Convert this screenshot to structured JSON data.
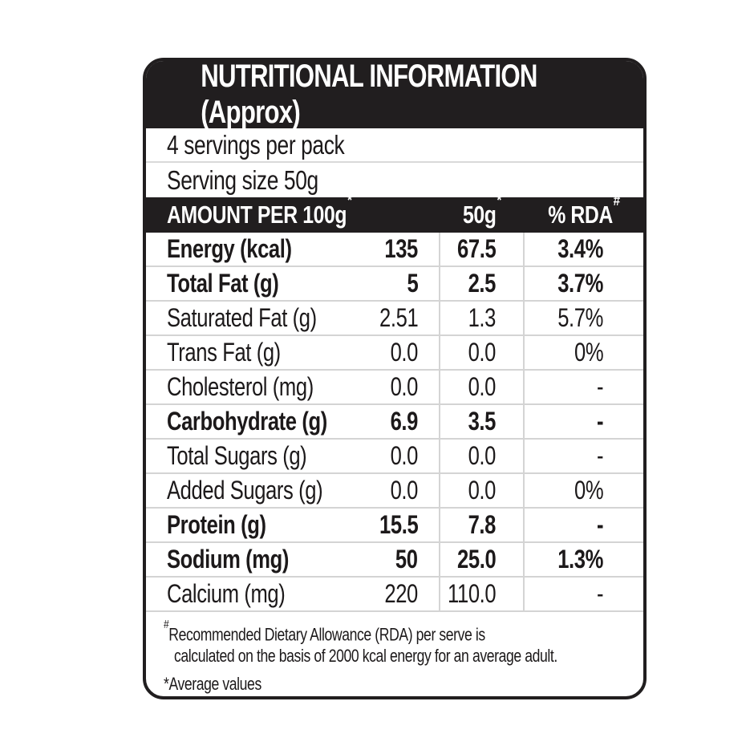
{
  "label": {
    "title": "NUTRITIONAL INFORMATION (Approx)",
    "servings_per_pack": "4 servings per pack",
    "serving_size": "Serving size 50g",
    "colors": {
      "band": "#211e1f",
      "text": "#1c191a",
      "separator": "#d4d4d4",
      "background": "#ffffff"
    },
    "table": {
      "header": {
        "amount": "AMOUNT PER 100g",
        "amount_sup": "*",
        "per_serving": "50g",
        "per_serving_sup": "*",
        "rda": "% RDA",
        "rda_sup": "#"
      },
      "rows": [
        {
          "name": "Energy (kcal)",
          "bold": true,
          "per_100g": "135",
          "per_50g": "67.5",
          "rda_percent": "3.4%"
        },
        {
          "name": "Total Fat (g)",
          "bold": true,
          "per_100g": "5",
          "per_50g": "2.5",
          "rda_percent": "3.7%"
        },
        {
          "name": "Saturated Fat (g)",
          "bold": false,
          "per_100g": "2.51",
          "per_50g": "1.3",
          "rda_percent": "5.7%"
        },
        {
          "name": "Trans Fat (g)",
          "bold": false,
          "per_100g": "0.0",
          "per_50g": "0.0",
          "rda_percent": "0%"
        },
        {
          "name": "Cholesterol (mg)",
          "bold": false,
          "per_100g": "0.0",
          "per_50g": "0.0",
          "rda_percent": "-"
        },
        {
          "name": "Carbohydrate (g)",
          "bold": true,
          "per_100g": "6.9",
          "per_50g": "3.5",
          "rda_percent": "-"
        },
        {
          "name": "Total Sugars (g)",
          "bold": false,
          "per_100g": "0.0",
          "per_50g": "0.0",
          "rda_percent": "-"
        },
        {
          "name": "Added Sugars (g)",
          "bold": false,
          "per_100g": "0.0",
          "per_50g": "0.0",
          "rda_percent": "0%"
        },
        {
          "name": "Protein (g)",
          "bold": true,
          "per_100g": "15.5",
          "per_50g": "7.8",
          "rda_percent": "-"
        },
        {
          "name": "Sodium (mg)",
          "bold": true,
          "per_100g": "50",
          "per_50g": "25.0",
          "rda_percent": "1.3%"
        },
        {
          "name": "Calcium (mg)",
          "bold": false,
          "per_100g": "220",
          "per_50g": "110.0",
          "rda_percent": "-"
        }
      ]
    },
    "footnotes": {
      "rda_sup": "#",
      "rda_line1": "Recommended Dietary Allowance (RDA) per serve is",
      "rda_line2": "calculated on the basis of 2000 kcal energy for an average adult.",
      "average_values": "*Average values"
    }
  }
}
